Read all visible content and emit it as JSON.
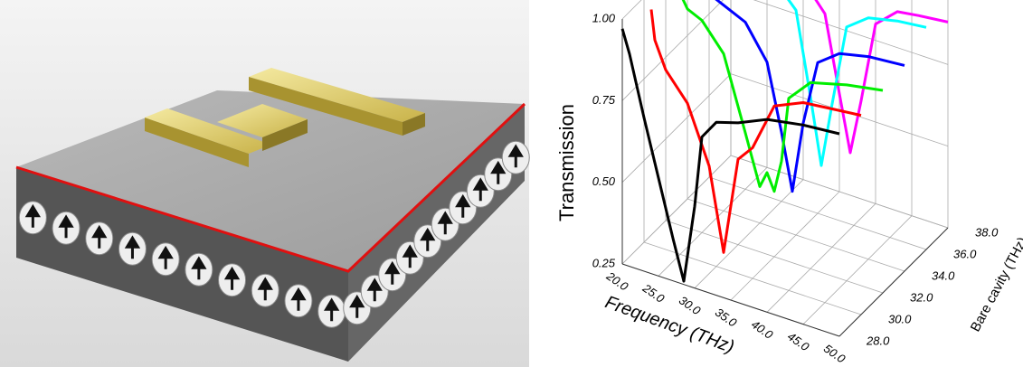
{
  "chart_data": {
    "type": "waterfall",
    "xlabel": "Frequency (THz)",
    "ylabel": "Transmission",
    "depth_label": "Bare cavity (THz)",
    "xlim": [
      20,
      50
    ],
    "xticks": [
      {
        "value": 20,
        "label": "20.0"
      },
      {
        "value": 25,
        "label": "25.0"
      },
      {
        "value": 30,
        "label": "30.0"
      },
      {
        "value": 35,
        "label": "35.0"
      },
      {
        "value": 40,
        "label": "40.0"
      },
      {
        "value": 45,
        "label": "45.0"
      },
      {
        "value": 50,
        "label": "50.0"
      }
    ],
    "ylim": [
      0.25,
      1.0
    ],
    "yticks": [
      {
        "value": 0.25,
        "label": "0.25"
      },
      {
        "value": 0.5,
        "label": "0.50"
      },
      {
        "value": 0.75,
        "label": "0.75"
      },
      {
        "value": 1.0,
        "label": "1.00"
      }
    ],
    "depthlim": [
      28,
      38
    ],
    "depthticks": [
      {
        "value": 28,
        "label": "28.0"
      },
      {
        "value": 30,
        "label": "30.0"
      },
      {
        "value": 32,
        "label": "32.0"
      },
      {
        "value": 34,
        "label": "34.0"
      },
      {
        "value": 36,
        "label": "36.0"
      },
      {
        "value": 38,
        "label": "38.0"
      }
    ],
    "grid": true,
    "series": [
      {
        "color": "#000000",
        "depth": 28,
        "x": [
          20,
          21,
          23,
          25,
          27,
          28.5,
          30,
          31,
          33,
          36,
          40,
          45,
          50
        ],
        "values": [
          0.97,
          0.9,
          0.72,
          0.55,
          0.38,
          0.26,
          0.5,
          0.72,
          0.78,
          0.8,
          0.84,
          0.86,
          0.87
        ]
      },
      {
        "color": "#ff0000",
        "depth": 30,
        "x": [
          21,
          21.5,
          23,
          26,
          29,
          31,
          32,
          33,
          35,
          38,
          42,
          46,
          50
        ],
        "values": [
          0.97,
          0.88,
          0.8,
          0.72,
          0.55,
          0.3,
          0.45,
          0.6,
          0.65,
          0.8,
          0.84,
          0.85,
          0.86
        ]
      },
      {
        "color": "#00ee00",
        "depth": 32,
        "x": [
          22,
          23,
          25,
          28,
          31,
          33,
          34,
          35,
          36,
          37,
          40,
          45,
          50
        ],
        "values": [
          0.96,
          0.92,
          0.9,
          0.82,
          0.6,
          0.45,
          0.5,
          0.45,
          0.55,
          0.75,
          0.82,
          0.85,
          0.87
        ]
      },
      {
        "color": "#0000ff",
        "depth": 34,
        "x": [
          22,
          23,
          25,
          28,
          31,
          33,
          34.5,
          36,
          38,
          41,
          45,
          50
        ],
        "values": [
          0.98,
          0.9,
          0.88,
          0.85,
          0.75,
          0.55,
          0.38,
          0.6,
          0.8,
          0.85,
          0.87,
          0.88
        ]
      },
      {
        "color": "#00ffff",
        "depth": 36,
        "x": [
          22,
          23,
          26,
          29,
          32,
          34,
          35.5,
          37,
          39,
          42,
          46,
          50
        ],
        "values": [
          1.0,
          0.97,
          0.95,
          0.92,
          0.85,
          0.6,
          0.4,
          0.6,
          0.85,
          0.9,
          0.92,
          0.93
        ]
      },
      {
        "color": "#ff00ff",
        "depth": 38,
        "x": [
          22,
          24,
          27,
          30,
          33,
          35,
          36.5,
          38,
          40,
          43,
          46,
          50
        ],
        "values": [
          0.96,
          0.92,
          0.9,
          0.86,
          0.78,
          0.55,
          0.38,
          0.55,
          0.8,
          0.86,
          0.87,
          0.88
        ]
      }
    ]
  }
}
